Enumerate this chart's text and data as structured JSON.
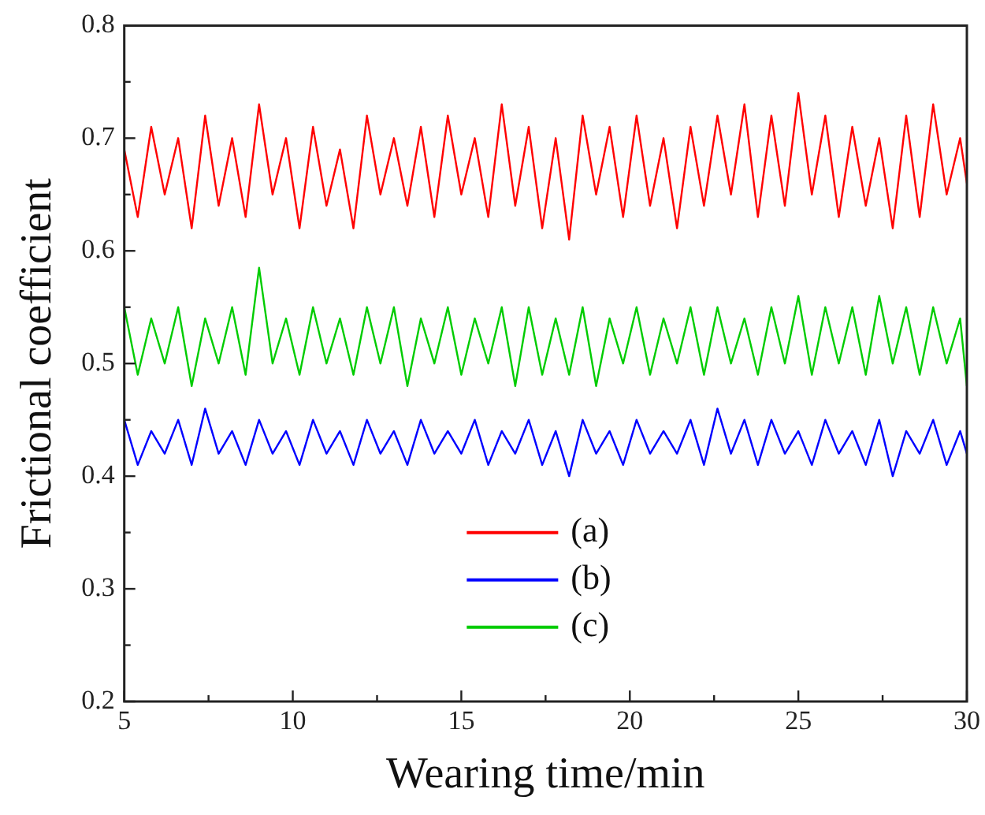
{
  "chart_data": {
    "type": "line",
    "xlabel": "Wearing time/min",
    "ylabel": "Frictional coefficient",
    "x": [
      5,
      5.4,
      5.8,
      6.2,
      6.6,
      7,
      7.4,
      7.8,
      8.2,
      8.6,
      9,
      9.4,
      9.8,
      10.2,
      10.6,
      11,
      11.4,
      11.8,
      12.2,
      12.6,
      13,
      13.4,
      13.8,
      14.2,
      14.6,
      15,
      15.4,
      15.8,
      16.2,
      16.6,
      17,
      17.4,
      17.8,
      18.2,
      18.6,
      19,
      19.4,
      19.8,
      20.2,
      20.6,
      21,
      21.4,
      21.8,
      22.2,
      22.6,
      23,
      23.4,
      23.8,
      24.2,
      24.6,
      25,
      25.4,
      25.8,
      26.2,
      26.6,
      27,
      27.4,
      27.8,
      28.2,
      28.6,
      29,
      29.4,
      29.8,
      30
    ],
    "series": [
      {
        "name": "(a)",
        "color": "#ff0000",
        "values": [
          0.69,
          0.63,
          0.71,
          0.65,
          0.7,
          0.62,
          0.72,
          0.64,
          0.7,
          0.63,
          0.73,
          0.65,
          0.7,
          0.62,
          0.71,
          0.64,
          0.69,
          0.62,
          0.72,
          0.65,
          0.7,
          0.64,
          0.71,
          0.63,
          0.72,
          0.65,
          0.7,
          0.63,
          0.73,
          0.64,
          0.71,
          0.62,
          0.7,
          0.61,
          0.72,
          0.65,
          0.71,
          0.63,
          0.72,
          0.64,
          0.7,
          0.62,
          0.71,
          0.64,
          0.72,
          0.65,
          0.73,
          0.63,
          0.72,
          0.64,
          0.74,
          0.65,
          0.72,
          0.63,
          0.71,
          0.64,
          0.7,
          0.62,
          0.72,
          0.63,
          0.73,
          0.65,
          0.7,
          0.66
        ]
      },
      {
        "name": "(b)",
        "color": "#0000ff",
        "values": [
          0.45,
          0.41,
          0.44,
          0.42,
          0.45,
          0.41,
          0.46,
          0.42,
          0.44,
          0.41,
          0.45,
          0.42,
          0.44,
          0.41,
          0.45,
          0.42,
          0.44,
          0.41,
          0.45,
          0.42,
          0.44,
          0.41,
          0.45,
          0.42,
          0.44,
          0.42,
          0.45,
          0.41,
          0.44,
          0.42,
          0.45,
          0.41,
          0.44,
          0.4,
          0.45,
          0.42,
          0.44,
          0.41,
          0.45,
          0.42,
          0.44,
          0.42,
          0.45,
          0.41,
          0.46,
          0.42,
          0.45,
          0.41,
          0.45,
          0.42,
          0.44,
          0.41,
          0.45,
          0.42,
          0.44,
          0.41,
          0.45,
          0.4,
          0.44,
          0.42,
          0.45,
          0.41,
          0.44,
          0.42
        ]
      },
      {
        "name": "(c)",
        "color": "#00cc00",
        "values": [
          0.55,
          0.49,
          0.54,
          0.5,
          0.55,
          0.48,
          0.54,
          0.5,
          0.55,
          0.49,
          0.585,
          0.5,
          0.54,
          0.49,
          0.55,
          0.5,
          0.54,
          0.49,
          0.55,
          0.5,
          0.55,
          0.48,
          0.54,
          0.5,
          0.55,
          0.49,
          0.54,
          0.5,
          0.55,
          0.48,
          0.55,
          0.49,
          0.54,
          0.49,
          0.55,
          0.48,
          0.54,
          0.5,
          0.55,
          0.49,
          0.54,
          0.5,
          0.55,
          0.49,
          0.55,
          0.5,
          0.54,
          0.49,
          0.55,
          0.5,
          0.56,
          0.49,
          0.55,
          0.5,
          0.55,
          0.49,
          0.56,
          0.5,
          0.55,
          0.49,
          0.55,
          0.5,
          0.54,
          0.48
        ]
      }
    ],
    "xlim": [
      5,
      30
    ],
    "xticks": [
      5,
      {
        "value": 7.5,
        "label": null
      },
      10,
      {
        "value": 12.5,
        "label": null
      },
      15,
      {
        "value": 17.5,
        "label": null
      },
      20,
      {
        "value": 22.5,
        "label": null
      },
      25,
      {
        "value": 27.5,
        "label": null
      },
      30
    ],
    "ylim": [
      0.2,
      0.8
    ],
    "yticks": [
      0.2,
      {
        "value": 0.25,
        "label": null
      },
      0.3,
      {
        "value": 0.35,
        "label": null
      },
      0.4,
      {
        "value": 0.45,
        "label": null
      },
      0.5,
      {
        "value": 0.55,
        "label": null
      },
      0.6,
      {
        "value": 0.65,
        "label": null
      },
      0.7,
      {
        "value": 0.75,
        "label": null
      },
      0.8
    ],
    "grid": false,
    "legend": "bottom",
    "marker": "none",
    "line_style": "solid"
  }
}
